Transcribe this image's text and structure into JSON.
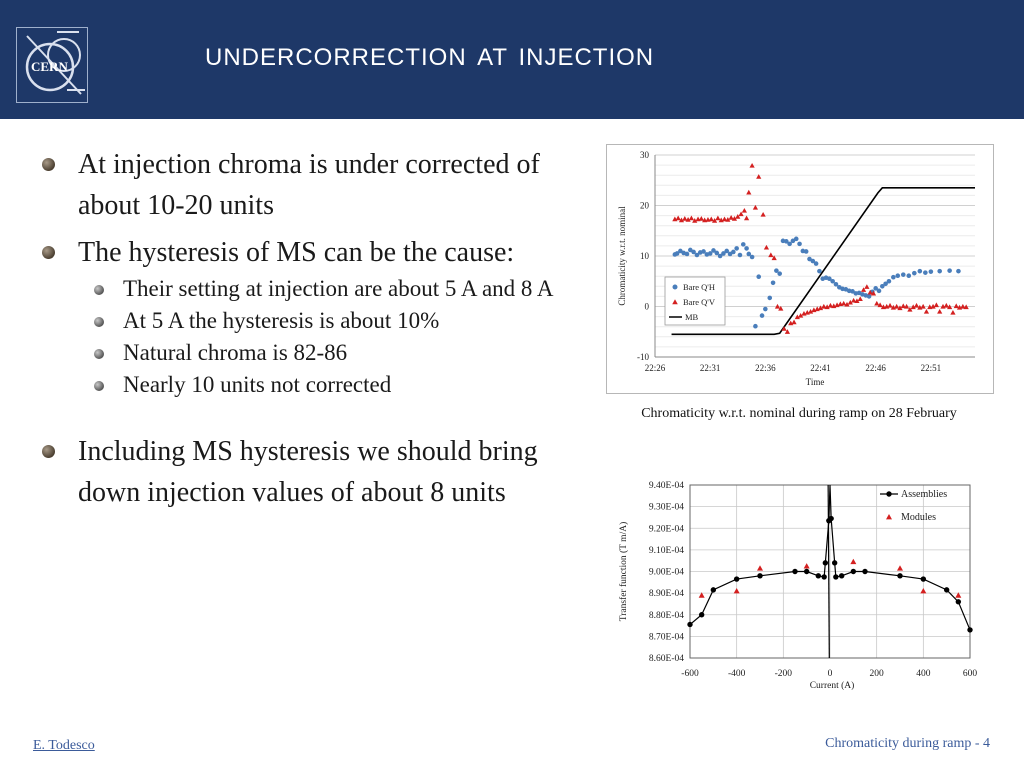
{
  "slide": {
    "title": "Undercorrection at injection",
    "logo_text": "CERN",
    "bullets": [
      {
        "level": 1,
        "text": "At injection chroma is under corrected of about 10-20 units"
      },
      {
        "level": 1,
        "text": "The hysteresis of MS can be the cause:"
      },
      {
        "level": 2,
        "text": "Their setting at injection are about 5 A and 8 A"
      },
      {
        "level": 2,
        "text": "At 5 A the hysteresis is about 10%"
      },
      {
        "level": 2,
        "text": "Natural chroma is 82-86"
      },
      {
        "level": 2,
        "text": "Nearly 10 units not corrected"
      },
      {
        "level": 1,
        "text": "Including MS hysteresis we should bring down injection values of about 8 units",
        "gap_before": true
      }
    ],
    "caption": "Chromaticity w.r.t. nominal during ramp on 28 February",
    "footer_left": "E. Todesco",
    "footer_right": "Chromaticity during ramp - 4"
  },
  "colors": {
    "header_bg": "#1e3868",
    "title_text": "#ffffff",
    "series_h": "#4a7ebb",
    "series_v": "#d42020",
    "series_mb": "#000000",
    "footer_text": "#3b5b9a"
  },
  "chart_data": [
    {
      "type": "scatter",
      "xlabel": "Time",
      "ylabel": "Chromaticity w.r.t. nominal",
      "ylim": [
        -10,
        30
      ],
      "yticks": [
        "-10",
        "0",
        "10",
        "20",
        "30"
      ],
      "xlim": [
        0,
        29
      ],
      "xticks": [
        {
          "value": 0,
          "label": "22:26"
        },
        {
          "value": 5,
          "label": "22:31"
        },
        {
          "value": 10,
          "label": "22:36"
        },
        {
          "value": 15,
          "label": "22:41"
        },
        {
          "value": 20,
          "label": "22:46"
        },
        {
          "value": 25,
          "label": "22:51"
        }
      ],
      "legend_position": "bottom-left",
      "series": [
        {
          "name": "Bare Q'H",
          "marker": "circle",
          "color": "#4a7ebb",
          "x": [
            1.8,
            2.0,
            2.3,
            2.6,
            2.9,
            3.2,
            3.5,
            3.8,
            4.1,
            4.4,
            4.7,
            5.0,
            5.3,
            5.6,
            5.9,
            6.2,
            6.5,
            6.8,
            7.1,
            7.4,
            7.7,
            8.0,
            8.3,
            8.5,
            8.8,
            9.1,
            9.4,
            9.7,
            10.0,
            10.4,
            10.7,
            11.0,
            11.3,
            11.6,
            11.9,
            12.2,
            12.5,
            12.8,
            13.1,
            13.4,
            13.7,
            14.0,
            14.3,
            14.6,
            14.9,
            15.2,
            15.5,
            15.8,
            16.1,
            16.4,
            16.7,
            17.0,
            17.3,
            17.6,
            17.9,
            18.2,
            18.5,
            18.8,
            19.1,
            19.4,
            19.7,
            20.0,
            20.3,
            20.6,
            20.9,
            21.2,
            21.6,
            22.0,
            22.5,
            23.0,
            23.5,
            24.0,
            24.5,
            25.0,
            25.8,
            26.7,
            27.5
          ],
          "y": [
            10.3,
            10.5,
            11.0,
            10.6,
            10.4,
            11.2,
            10.8,
            10.2,
            10.7,
            10.9,
            10.3,
            10.5,
            11.1,
            10.6,
            10.0,
            10.5,
            11.0,
            10.4,
            10.8,
            11.5,
            10.2,
            12.3,
            11.5,
            10.4,
            9.8,
            -3.9,
            5.9,
            -1.8,
            -0.5,
            1.7,
            4.7,
            7.1,
            6.5,
            13.0,
            12.9,
            12.4,
            13.0,
            13.4,
            12.4,
            11.0,
            10.9,
            9.4,
            9.0,
            8.5,
            7.0,
            5.5,
            5.7,
            5.5,
            5.0,
            4.4,
            3.8,
            3.5,
            3.4,
            3.1,
            3.0,
            2.6,
            2.7,
            2.4,
            2.2,
            2.0,
            2.9,
            3.6,
            3.1,
            4.0,
            4.5,
            5.0,
            5.8,
            6.1,
            6.3,
            6.1,
            6.6,
            7.0,
            6.7,
            6.9,
            7.0,
            7.1,
            7.0
          ]
        },
        {
          "name": "Bare Q'V",
          "marker": "triangle",
          "color": "#d42020",
          "x": [
            1.8,
            2.1,
            2.4,
            2.7,
            3.0,
            3.3,
            3.6,
            3.9,
            4.2,
            4.5,
            4.8,
            5.1,
            5.4,
            5.7,
            6.0,
            6.3,
            6.6,
            6.9,
            7.2,
            7.5,
            7.8,
            8.1,
            8.3,
            8.5,
            8.8,
            9.1,
            9.4,
            9.8,
            10.1,
            10.5,
            10.8,
            11.1,
            11.4,
            11.7,
            12.0,
            12.3,
            12.6,
            12.9,
            13.2,
            13.5,
            13.8,
            14.1,
            14.4,
            14.7,
            15.0,
            15.3,
            15.6,
            15.9,
            16.2,
            16.5,
            16.8,
            17.1,
            17.4,
            17.7,
            18.0,
            18.3,
            18.6,
            18.9,
            19.2,
            19.5,
            19.8,
            20.1,
            20.4,
            20.7,
            21.0,
            21.3,
            21.6,
            21.9,
            22.2,
            22.5,
            22.8,
            23.1,
            23.4,
            23.7,
            24.0,
            24.3,
            24.6,
            24.9,
            25.2,
            25.5,
            25.8,
            26.1,
            26.4,
            26.7,
            27.0,
            27.3,
            27.6,
            27.9,
            28.2
          ],
          "y": [
            17.3,
            17.5,
            17.1,
            17.4,
            17.2,
            17.5,
            17.0,
            17.3,
            17.4,
            17.1,
            17.2,
            17.3,
            17.0,
            17.5,
            17.1,
            17.3,
            17.2,
            17.6,
            17.4,
            17.8,
            18.3,
            19.0,
            17.5,
            22.6,
            27.9,
            19.6,
            25.7,
            18.2,
            11.7,
            10.2,
            9.6,
            0.0,
            -0.4,
            -4.4,
            -5.0,
            -3.3,
            -3.1,
            -2.1,
            -1.8,
            -1.4,
            -1.2,
            -1.0,
            -0.7,
            -0.5,
            -0.3,
            0.0,
            -0.1,
            0.2,
            0.1,
            0.3,
            0.5,
            0.6,
            0.4,
            0.8,
            1.2,
            1.1,
            1.5,
            3.3,
            3.9,
            2.8,
            2.6,
            0.6,
            0.3,
            -0.1,
            0.0,
            0.2,
            -0.2,
            0.0,
            -0.3,
            0.1,
            0.0,
            -0.6,
            -0.1,
            0.2,
            -0.2,
            0.0,
            -1.0,
            -0.1,
            0.0,
            0.3,
            -1.0,
            0.0,
            0.2,
            -0.1,
            -1.2,
            0.1,
            -0.2,
            0.0,
            -0.1
          ]
        },
        {
          "name": "MB",
          "marker": "line",
          "color": "#000000",
          "x": [
            1.5,
            10.8,
            11.3,
            20.2,
            20.6,
            29.0
          ],
          "y": [
            -5.5,
            -5.5,
            -5.3,
            22.5,
            23.5,
            23.5
          ]
        }
      ]
    },
    {
      "type": "line",
      "xlabel": "Current (A)",
      "ylabel": "Transfer function (T m/A)",
      "ylim": [
        0.00086,
        0.00094
      ],
      "yticks": [
        "8.60E-04",
        "8.70E-04",
        "8.80E-04",
        "8.90E-04",
        "9.00E-04",
        "9.10E-04",
        "9.20E-04",
        "9.30E-04",
        "9.40E-04"
      ],
      "xlim": [
        -600,
        600
      ],
      "xticks": [
        "-600",
        "-400",
        "-200",
        "0",
        "200",
        "400",
        "600"
      ],
      "legend_position": "top-right",
      "series": [
        {
          "name": "Assemblies",
          "marker": "circle-line",
          "color": "#000000",
          "x": [
            -600,
            -550,
            -500,
            -400,
            -300,
            -150,
            -100,
            -50,
            -25,
            -20,
            -5,
            0,
            5,
            20,
            25,
            50,
            100,
            150,
            300,
            400,
            500,
            550,
            600
          ],
          "y": [
            0.0008755,
            0.00088,
            0.0008915,
            0.0008965,
            0.000898,
            0.0009,
            0.0009,
            0.000898,
            0.0008975,
            0.000904,
            0.0009235,
            0.00094,
            0.0009245,
            0.000904,
            0.0008975,
            0.000898,
            0.0009,
            0.0009,
            0.000898,
            0.0008965,
            0.0008915,
            0.000886,
            0.000873
          ]
        },
        {
          "name": "Modules",
          "marker": "triangle",
          "color": "#d42020",
          "x": [
            -550,
            -400,
            -300,
            -100,
            100,
            300,
            400,
            550
          ],
          "y": [
            0.000889,
            0.000891,
            0.0009015,
            0.0009025,
            0.0009045,
            0.0009015,
            0.000891,
            0.000889
          ]
        }
      ]
    }
  ]
}
